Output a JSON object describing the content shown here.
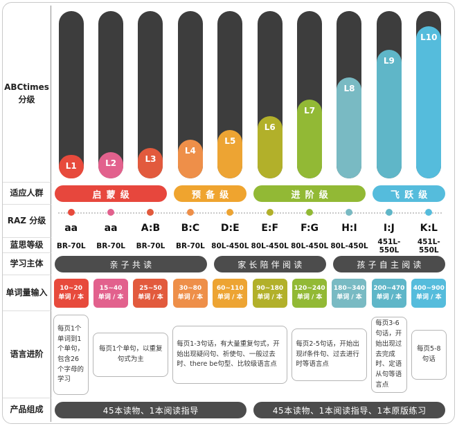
{
  "side": {
    "abctimes": "ABCtimes 分级",
    "audience": "适应人群",
    "raz": "RAZ 分级",
    "lexile": "蓝思等级",
    "subject": "学习主体",
    "words": "单词量输入",
    "language": "语言进阶",
    "product": "产品组成"
  },
  "colors": {
    "bar": "#3d3d3d",
    "pill": "#4c4c4c"
  },
  "levels": [
    {
      "id": "L1",
      "color": "#e74a3c",
      "fill": "34px",
      "raz": "aa",
      "lexile": "BR-70L",
      "words": "10~20"
    },
    {
      "id": "L2",
      "color": "#e2618d",
      "fill": "38px",
      "raz": "aa",
      "lexile": "BR-70L",
      "words": "15~40"
    },
    {
      "id": "L3",
      "color": "#e25a3d",
      "fill": "44px",
      "raz": "A:B",
      "lexile": "BR-70L",
      "words": "25~50"
    },
    {
      "id": "L4",
      "color": "#ee8f49",
      "fill": "56px",
      "raz": "B:C",
      "lexile": "BR-70L",
      "words": "30~80"
    },
    {
      "id": "L5",
      "color": "#eda433",
      "fill": "70px",
      "raz": "D:E",
      "lexile": "80L-450L",
      "words": "60~110"
    },
    {
      "id": "L6",
      "color": "#b2b02a",
      "fill": "90px",
      "raz": "E:F",
      "lexile": "80L-450L",
      "words": "90~180"
    },
    {
      "id": "L7",
      "color": "#92b935",
      "fill": "114px",
      "raz": "F:G",
      "lexile": "80L-450L",
      "words": "120~240"
    },
    {
      "id": "L8",
      "color": "#79bac3",
      "fill": "146px",
      "raz": "H:I",
      "lexile": "80L-450L",
      "words": "180~340"
    },
    {
      "id": "L9",
      "color": "#5fb6c8",
      "fill": "186px",
      "raz": "I:J",
      "lexile": "451L-550L",
      "words": "200~470"
    },
    {
      "id": "L10",
      "color": "#55bcdc",
      "fill": "220px",
      "raz": "K:L",
      "lexile": "451L-550L",
      "words": "400~900"
    }
  ],
  "word_unit": "单词 / 本",
  "audience": [
    {
      "label": "启蒙级",
      "color": "#e7473d"
    },
    {
      "label": "预备级",
      "color": "#efa42f"
    },
    {
      "label": "进阶级",
      "color": "#92b935"
    },
    {
      "label": "飞跃级",
      "color": "#55bcdc"
    }
  ],
  "subjects": [
    {
      "label": "亲子共读"
    },
    {
      "label": "家长陪伴阅读"
    },
    {
      "label": "孩子自主阅读"
    }
  ],
  "language": [
    {
      "text": "每页1个单词到1个单句，包含26个字母的学习"
    },
    {
      "text": "每页1个单句，以重复句式为主"
    },
    {
      "text": "每页1-3句话，有大量重复句式，开始出现疑问句、祈使句、一般过去时、there be句型、比较级语言点"
    },
    {
      "text": "每页2-5句话，开始出现if条件句、过去进行时等语言点"
    },
    {
      "text": "每页3-6句话，开始出现过去完成时、定语从句等语言点"
    },
    {
      "text": "每页5-8句话"
    }
  ],
  "products": [
    {
      "label": "45本读物、1本阅读指导"
    },
    {
      "label": "45本读物、1本阅读指导、1本原版练习"
    }
  ]
}
